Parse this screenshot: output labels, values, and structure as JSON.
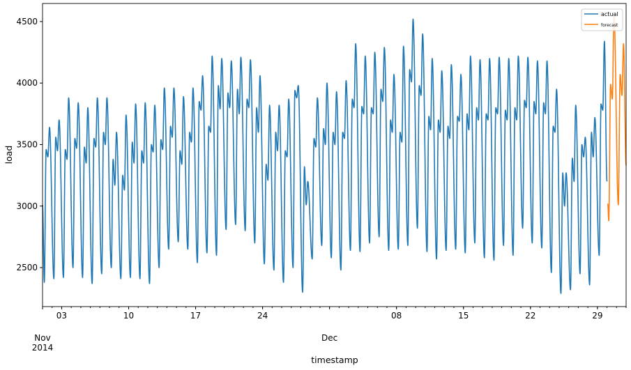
{
  "chart_data": {
    "type": "line",
    "xlabel": "timestamp",
    "ylabel": "load",
    "ylim": [
      2183,
      4647
    ],
    "xlim": [
      "2014-11-01",
      "2015-01-01"
    ],
    "grid": false,
    "legend_position": "top-right",
    "yticks": [
      2500,
      3000,
      3500,
      4000,
      4500
    ],
    "xticks_major": [
      {
        "date": "2014-11-03",
        "label": "03"
      },
      {
        "date": "2014-11-10",
        "label": "10"
      },
      {
        "date": "2014-11-17",
        "label": "17"
      },
      {
        "date": "2014-11-24",
        "label": "24"
      },
      {
        "date": "2014-12-08",
        "label": "08"
      },
      {
        "date": "2014-12-15",
        "label": "15"
      },
      {
        "date": "2014-12-22",
        "label": "22"
      },
      {
        "date": "2014-12-29",
        "label": "29"
      }
    ],
    "month_labels": [
      {
        "date": "2014-11-01",
        "month": "Nov",
        "year": "2014"
      },
      {
        "date": "2014-12-01",
        "month": "Dec",
        "year": ""
      }
    ],
    "daily_fields": [
      "night_low",
      "morning",
      "midday",
      "evening_peak"
    ],
    "series": [
      {
        "name": "actual",
        "color": "#1f77b4",
        "start": "2014-11-01",
        "daily": [
          [
            2380,
            3460,
            3400,
            3640
          ],
          [
            2410,
            3560,
            3450,
            3700
          ],
          [
            2420,
            3460,
            3380,
            3880
          ],
          [
            2500,
            3550,
            3470,
            3840
          ],
          [
            2420,
            3480,
            3350,
            3800
          ],
          [
            2370,
            3550,
            3480,
            3880
          ],
          [
            2450,
            3600,
            3500,
            3880
          ],
          [
            2500,
            3380,
            3170,
            3600
          ],
          [
            2410,
            3250,
            3130,
            3740
          ],
          [
            2420,
            3520,
            3350,
            3830
          ],
          [
            2410,
            3450,
            3350,
            3840
          ],
          [
            2370,
            3500,
            3440,
            3820
          ],
          [
            2500,
            3540,
            3460,
            3960
          ],
          [
            2650,
            3650,
            3560,
            3960
          ],
          [
            2710,
            3450,
            3340,
            3890
          ],
          [
            2650,
            3600,
            3520,
            3960
          ],
          [
            2540,
            3850,
            3780,
            4060
          ],
          [
            2620,
            3650,
            3600,
            4220
          ],
          [
            2600,
            3980,
            3790,
            4200
          ],
          [
            2810,
            3920,
            3800,
            4180
          ],
          [
            2850,
            3950,
            3750,
            4210
          ],
          [
            2800,
            3870,
            3800,
            4190
          ],
          [
            2700,
            3800,
            3600,
            4060
          ],
          [
            2530,
            3340,
            3210,
            3820
          ],
          [
            2480,
            3600,
            3450,
            3820
          ],
          [
            2380,
            3450,
            3400,
            3870
          ],
          [
            2500,
            3940,
            3880,
            3980
          ],
          [
            2300,
            3320,
            3010,
            3200
          ],
          [
            2570,
            3550,
            3480,
            3880
          ],
          [
            2680,
            3630,
            3500,
            4000
          ],
          [
            2580,
            3600,
            3500,
            3930
          ],
          [
            2480,
            3600,
            3550,
            4020
          ],
          [
            2640,
            3870,
            3800,
            4320
          ],
          [
            2630,
            3810,
            3750,
            4220
          ],
          [
            2700,
            3800,
            3750,
            4250
          ],
          [
            2750,
            3950,
            3850,
            4290
          ],
          [
            2640,
            3700,
            3600,
            4070
          ],
          [
            2650,
            3600,
            3520,
            4300
          ],
          [
            2680,
            4110,
            4010,
            4520
          ],
          [
            2820,
            3980,
            3900,
            4400
          ],
          [
            2630,
            3730,
            3620,
            4200
          ],
          [
            2570,
            3700,
            3600,
            4100
          ],
          [
            2640,
            3650,
            3550,
            4150
          ],
          [
            2650,
            3730,
            3690,
            4070
          ],
          [
            2620,
            3750,
            3620,
            4220
          ],
          [
            2700,
            3800,
            3700,
            4190
          ],
          [
            2580,
            3750,
            3700,
            4200
          ],
          [
            2560,
            3800,
            3750,
            4210
          ],
          [
            2680,
            3780,
            3700,
            4200
          ],
          [
            2600,
            3800,
            3700,
            4220
          ],
          [
            2820,
            3860,
            3800,
            4210
          ],
          [
            2700,
            3850,
            3750,
            4180
          ],
          [
            2660,
            3840,
            3750,
            4180
          ],
          [
            2460,
            3650,
            3600,
            3950
          ],
          [
            2290,
            3270,
            3000,
            3270
          ],
          [
            2320,
            3390,
            3200,
            3820
          ],
          [
            2450,
            3500,
            3400,
            3560
          ],
          [
            2360,
            3600,
            3400,
            3720
          ],
          [
            2600,
            3830,
            3780,
            4340
          ]
        ],
        "end_value": 3200
      },
      {
        "name": "forecast",
        "color": "#ff7f0e",
        "start": "2014-12-30",
        "start_value": 3020,
        "daily": [
          [
            2880,
            3990,
            3870,
            4560
          ],
          [
            3010,
            4070,
            3900,
            4320
          ]
        ],
        "end_value": 3330
      }
    ]
  }
}
